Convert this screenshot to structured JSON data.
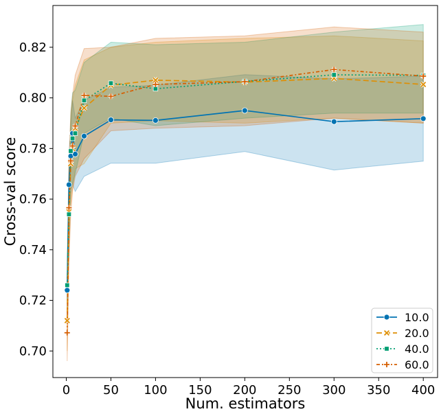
{
  "chart_data": {
    "type": "line",
    "xlabel": "Num. estimators",
    "ylabel": "Cross-val score",
    "xlim": [
      -15,
      416
    ],
    "ylim": [
      0.6895,
      0.8365
    ],
    "xticks": [
      0,
      50,
      100,
      150,
      200,
      250,
      300,
      350,
      400
    ],
    "yticks": [
      0.7,
      0.72,
      0.74,
      0.76,
      0.78,
      0.8,
      0.82
    ],
    "legend_position": "lower-right",
    "grid": false,
    "x": [
      1,
      3,
      5,
      7,
      10,
      20,
      50,
      100,
      200,
      300,
      400
    ],
    "series": [
      {
        "name": "10.0",
        "color": "#0173b2",
        "dash": "",
        "marker": "circle",
        "values": [
          0.724,
          0.7657,
          0.777,
          0.786,
          0.7778,
          0.7849,
          0.7913,
          0.7911,
          0.795,
          0.7906,
          0.7918
        ],
        "ci_lower": [
          0.72,
          0.754,
          0.762,
          0.766,
          0.763,
          0.769,
          0.7742,
          0.7742,
          0.7788,
          0.7715,
          0.775
        ],
        "ci_upper": [
          0.728,
          0.778,
          0.788,
          0.799,
          0.792,
          0.799,
          0.8042,
          0.805,
          0.8092,
          0.8075,
          0.8086
        ]
      },
      {
        "name": "20.0",
        "color": "#de8f05",
        "dash": "8,4",
        "marker": "x",
        "values": [
          0.712,
          0.755,
          0.774,
          0.78,
          0.788,
          0.796,
          0.805,
          0.807,
          0.8062,
          0.8077,
          0.8053
        ],
        "ci_lower": [
          0.7,
          0.74,
          0.758,
          0.764,
          0.772,
          0.774,
          0.79,
          0.791,
          0.79,
          0.792,
          0.79
        ],
        "ci_upper": [
          0.725,
          0.77,
          0.79,
          0.799,
          0.805,
          0.815,
          0.82,
          0.822,
          0.8235,
          0.8245,
          0.8225
        ]
      },
      {
        "name": "40.0",
        "color": "#029e73",
        "dash": "2,3",
        "marker": "square",
        "values": [
          0.726,
          0.754,
          0.779,
          0.784,
          0.786,
          0.799,
          0.8058,
          0.8036,
          0.8065,
          0.8091,
          0.8089
        ],
        "ci_lower": [
          0.714,
          0.742,
          0.764,
          0.766,
          0.77,
          0.786,
          0.792,
          0.789,
          0.792,
          0.794,
          0.794
        ],
        "ci_upper": [
          0.738,
          0.768,
          0.794,
          0.802,
          0.803,
          0.814,
          0.822,
          0.821,
          0.822,
          0.826,
          0.829
        ]
      },
      {
        "name": "60.0",
        "color": "#d55e00",
        "dash": "5,3,2,3",
        "marker": "plus",
        "values": [
          0.7072,
          0.7566,
          0.7751,
          0.781,
          0.7889,
          0.801,
          0.8006,
          0.8053,
          0.8064,
          0.8112,
          0.8086
        ],
        "ci_lower": [
          0.696,
          0.735,
          0.754,
          0.763,
          0.769,
          0.776,
          0.787,
          0.788,
          0.789,
          0.792,
          0.79
        ],
        "ci_upper": [
          0.72,
          0.775,
          0.794,
          0.801,
          0.809,
          0.8195,
          0.82,
          0.8235,
          0.8245,
          0.828,
          0.826
        ]
      }
    ]
  }
}
